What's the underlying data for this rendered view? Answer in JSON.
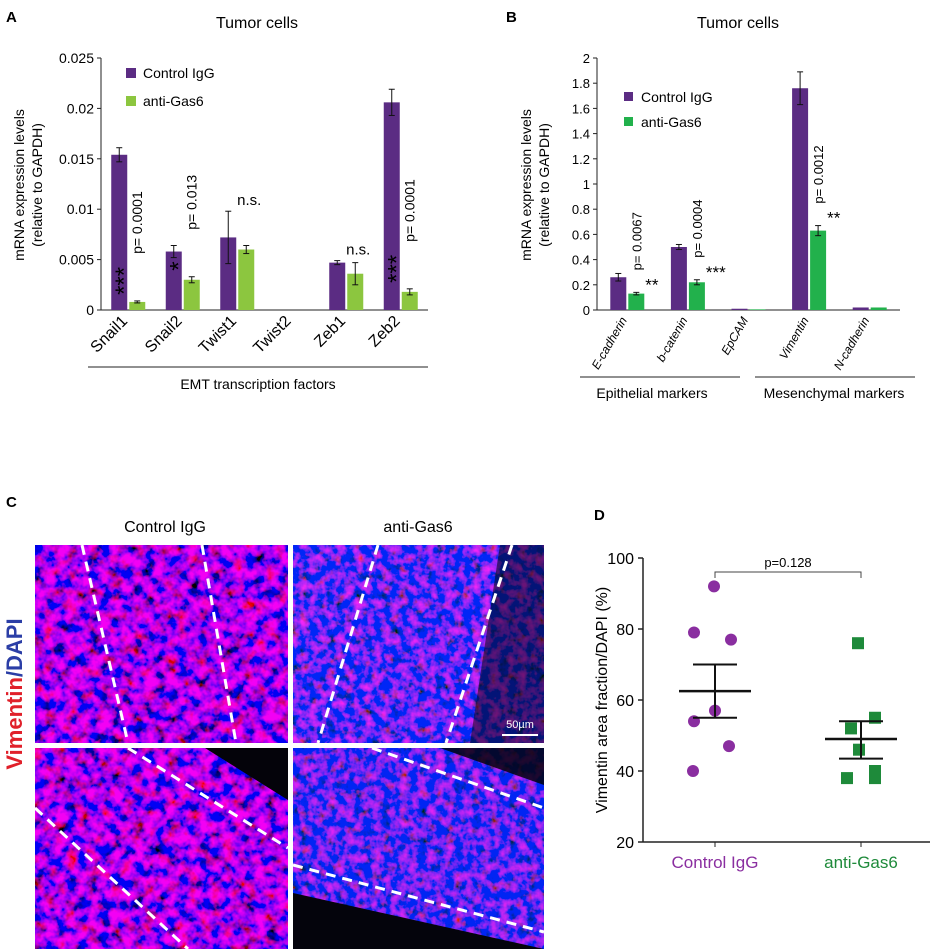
{
  "colors": {
    "control": "#5b2c83",
    "anti_light": "#8cc63f",
    "anti_dark": "#22b14c",
    "scatter_control": "#8a2ea0",
    "scatter_anti": "#1e8a3a",
    "vimentin": "#e0202a",
    "dapi": "#2b3ea6"
  },
  "panels": {
    "a": {
      "letter": "A",
      "title": "Tumor cells",
      "bracket_label": "EMT transcription factors"
    },
    "b": {
      "letter": "B",
      "title": "Tumor cells",
      "group1_label": "Epithelial  markers",
      "group2_label": "Mesenchymal markers"
    },
    "c": {
      "letter": "C",
      "col1": "Control IgG",
      "col2": "anti-Gas6",
      "side_label_red": "Vimentin",
      "side_label_blue": "/DAPI",
      "scale_bar": "50µm"
    },
    "d": {
      "letter": "D"
    }
  },
  "chart_data": [
    {
      "id": "A",
      "type": "bar",
      "title": "Tumor cells",
      "ylabel_line1": "mRNA expression levels",
      "ylabel_line2": "(relative to GAPDH)",
      "xlabel": "EMT transcription factors",
      "ylim": [
        0,
        0.025
      ],
      "yticks": [
        0,
        0.005,
        0.01,
        0.015,
        0.02,
        0.025
      ],
      "ytick_labels": [
        "0",
        "0.005",
        "0.01",
        "0.015",
        "0.02",
        "0.025"
      ],
      "categories": [
        "Snail1",
        "Snail2",
        "Twist1",
        "Twist2",
        "Zeb1",
        "Zeb2"
      ],
      "series": [
        {
          "name": "Control IgG",
          "values": [
            0.0154,
            0.0058,
            0.0072,
            0,
            0.0047,
            0.0206
          ],
          "errors": [
            0.0007,
            0.0006,
            0.0026,
            0,
            0.0002,
            0.0013
          ]
        },
        {
          "name": "anti-Gas6",
          "values": [
            0.0008,
            0.003,
            0.006,
            0,
            0.0036,
            0.0018
          ],
          "errors": [
            0.0001,
            0.0003,
            0.0004,
            0,
            0.0011,
            0.0003
          ]
        }
      ],
      "pvalues": [
        "p= 0.0001",
        "p= 0.013",
        "",
        "",
        "",
        "p= 0.0001"
      ],
      "stars": [
        "***",
        "*",
        "n.s.",
        "",
        "n.s.",
        "***"
      ]
    },
    {
      "id": "B",
      "type": "bar",
      "title": "Tumor cells",
      "ylabel_line1": "mRNA expression levels",
      "ylabel_line2": "(relative to GAPDH)",
      "ylim": [
        0,
        2
      ],
      "yticks": [
        0,
        0.2,
        0.4,
        0.6,
        0.8,
        1,
        1.2,
        1.4,
        1.6,
        1.8,
        2
      ],
      "ytick_labels": [
        "0",
        "0.2",
        "0.4",
        "0.6",
        "0.8",
        "1",
        "1.2",
        "1.4",
        "1.6",
        "1.8",
        "2"
      ],
      "categories": [
        "E-cadherin",
        "b-catenin",
        "EpCAM",
        "Vimentin",
        "N-cadherin"
      ],
      "series": [
        {
          "name": "Control IgG",
          "values": [
            0.26,
            0.5,
            0.01,
            1.76,
            0.02
          ],
          "errors": [
            0.03,
            0.02,
            0,
            0.13,
            0
          ]
        },
        {
          "name": "anti-Gas6",
          "values": [
            0.13,
            0.22,
            0.005,
            0.63,
            0.02
          ],
          "errors": [
            0.01,
            0.02,
            0,
            0.04,
            0
          ]
        }
      ],
      "pvalues": [
        "p= 0.0067",
        "p= 0.0004",
        "",
        "p= 0.0012",
        ""
      ],
      "stars": [
        "**",
        "***",
        "",
        "**",
        ""
      ]
    },
    {
      "id": "D",
      "type": "scatter",
      "ylabel": "Vimentin area fraction/DAPI (%)",
      "ylim": [
        20,
        100
      ],
      "yticks": [
        20,
        40,
        60,
        80,
        100
      ],
      "categories": [
        "Control IgG",
        "anti-Gas6"
      ],
      "groups": [
        {
          "name": "Control IgG",
          "points": [
            92,
            79,
            77,
            57,
            54,
            47,
            40
          ],
          "mean": 62.5,
          "sem_low": 55,
          "sem_high": 70
        },
        {
          "name": "anti-Gas6",
          "points": [
            76,
            55,
            52,
            46,
            40,
            38,
            38
          ],
          "mean": 49,
          "sem_low": 43.5,
          "sem_high": 54
        },
        {
          "name": "",
          "points": [],
          "mean": 0,
          "sem_low": 0,
          "sem_high": 0
        }
      ],
      "significance": "p=0.128"
    }
  ]
}
